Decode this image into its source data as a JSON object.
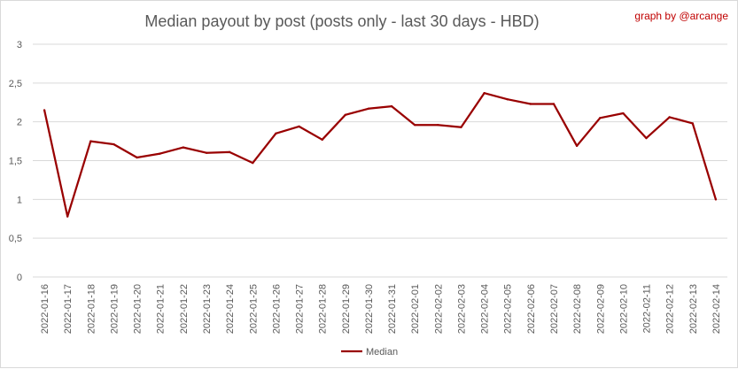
{
  "chart_data": {
    "type": "line",
    "title": "Median payout by post (posts only - last 30 days - HBD)",
    "credit": "graph by @arcange",
    "xlabel": "",
    "ylabel": "",
    "ylim": [
      0,
      3
    ],
    "yticks": [
      "0",
      "0,5",
      "1",
      "1,5",
      "2",
      "2,5",
      "3"
    ],
    "grid": true,
    "legend_position": "bottom",
    "categories": [
      "2022-01-16",
      "2022-01-17",
      "2022-01-18",
      "2022-01-19",
      "2022-01-20",
      "2022-01-21",
      "2022-01-22",
      "2022-01-23",
      "2022-01-24",
      "2022-01-25",
      "2022-01-26",
      "2022-01-27",
      "2022-01-28",
      "2022-01-29",
      "2022-01-30",
      "2022-01-31",
      "2022-02-01",
      "2022-02-02",
      "2022-02-03",
      "2022-02-04",
      "2022-02-05",
      "2022-02-06",
      "2022-02-07",
      "2022-02-08",
      "2022-02-09",
      "2022-02-10",
      "2022-02-11",
      "2022-02-12",
      "2022-02-13",
      "2022-02-14"
    ],
    "series": [
      {
        "name": "Median",
        "color": "#990000",
        "values": [
          2.15,
          0.78,
          1.75,
          1.71,
          1.54,
          1.59,
          1.67,
          1.6,
          1.61,
          1.47,
          1.85,
          1.94,
          1.77,
          2.09,
          2.17,
          2.2,
          1.96,
          1.96,
          1.93,
          2.37,
          2.29,
          2.23,
          2.23,
          1.69,
          2.05,
          2.11,
          1.79,
          2.06,
          1.98,
          1.0
        ]
      }
    ]
  }
}
